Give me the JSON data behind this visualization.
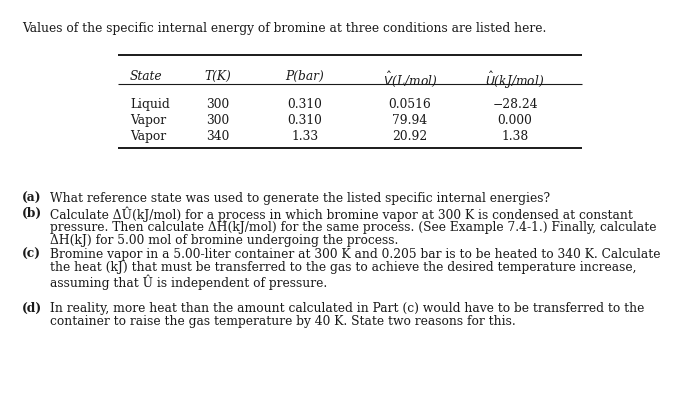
{
  "intro_text": "Values of the specific internal energy of bromine at three conditions are listed here.",
  "table_headers_plain": [
    "State",
    "T(K)",
    "P(bar)",
    "V(L/mol)",
    "U(kJ/mol)"
  ],
  "table_rows": [
    [
      "Liquid",
      "300",
      "0.310",
      "0.0516",
      "−28.24"
    ],
    [
      "Vapor",
      "300",
      "0.310",
      "79.94",
      "0.000"
    ],
    [
      "Vapor",
      "340",
      "1.33",
      "20.92",
      "1.38"
    ]
  ],
  "questions": [
    {
      "label": "(a)",
      "lines": [
        "What reference state was used to generate the listed specific internal energies?"
      ]
    },
    {
      "label": "(b)",
      "lines": [
        "Calculate ΔÛ(kJ/mol) for a process in which bromine vapor at 300 K is condensed at constant",
        "pressure. Then calculate ΔĤ(kJ/mol) for the same process. (See Example 7.4-1.) Finally, calculate",
        "ΔH(kJ) for 5.00 mol of bromine undergoing the process."
      ]
    },
    {
      "label": "(c)",
      "lines": [
        "Bromine vapor in a 5.00-liter container at 300 K and 0.205 bar is to be heated to 340 K. Calculate",
        "the heat (kJ) that must be transferred to the gas to achieve the desired temperature increase,",
        "assuming that Û is independent of pressure."
      ]
    },
    {
      "label": "(d)",
      "lines": [
        "In reality, more heat than the amount calculated in Part (c) would have to be transferred to the",
        "container to raise the gas temperature by 40 K. State two reasons for this."
      ]
    }
  ],
  "bg_color": "#ffffff",
  "text_color": "#1a1a1a",
  "font_family": "DejaVu Serif",
  "font_size": 8.8,
  "dpi": 100,
  "fig_width": 7.0,
  "fig_height": 4.2
}
